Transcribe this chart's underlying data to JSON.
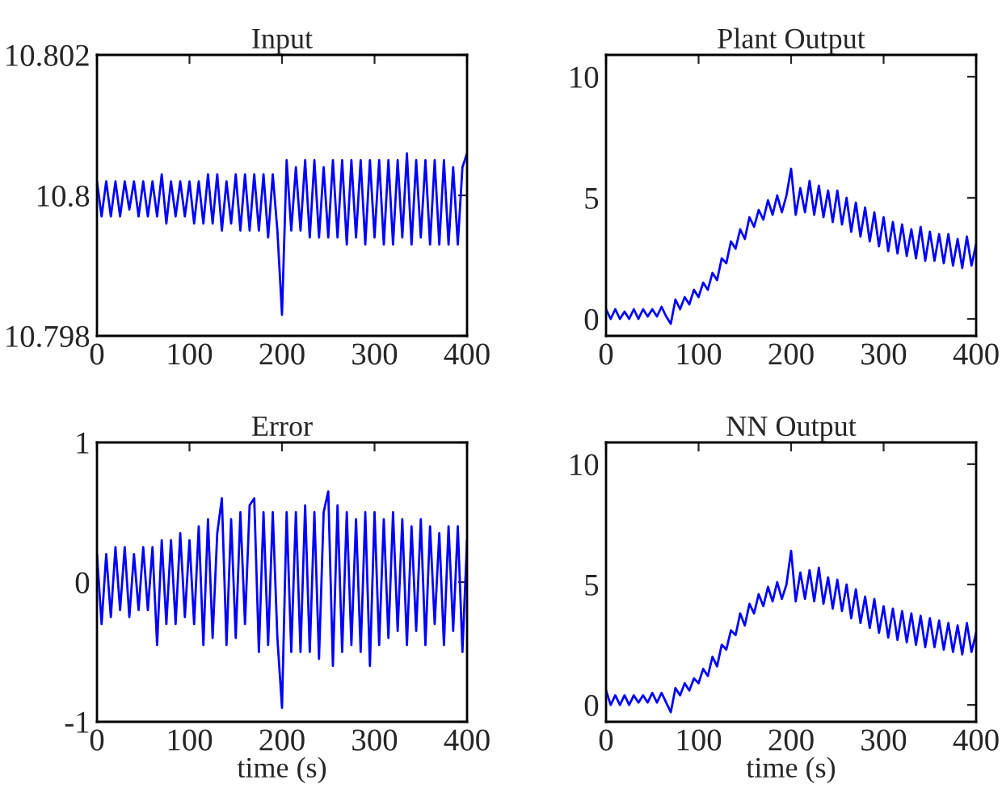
{
  "chart_data": [
    {
      "type": "line",
      "title": "Input",
      "xlim": [
        0,
        400
      ],
      "ylim": [
        10.798,
        10.802
      ],
      "xticks": [
        0,
        100,
        200,
        300,
        400
      ],
      "yticks": [
        10.798,
        10.8,
        10.802
      ],
      "x": [
        0,
        5,
        10,
        15,
        20,
        25,
        30,
        35,
        40,
        45,
        50,
        55,
        60,
        65,
        70,
        75,
        80,
        85,
        90,
        95,
        100,
        105,
        110,
        115,
        120,
        125,
        130,
        135,
        140,
        145,
        150,
        155,
        160,
        165,
        170,
        175,
        180,
        185,
        190,
        195,
        200,
        205,
        210,
        215,
        220,
        225,
        230,
        235,
        240,
        245,
        250,
        255,
        260,
        265,
        270,
        275,
        280,
        285,
        290,
        295,
        300,
        305,
        310,
        315,
        320,
        325,
        330,
        335,
        340,
        345,
        350,
        355,
        360,
        365,
        370,
        375,
        380,
        385,
        390,
        395,
        400
      ],
      "series": [
        {
          "color": "#0000ff",
          "values": [
            10.8002,
            10.7997,
            10.8002,
            10.7997,
            10.8002,
            10.7997,
            10.8002,
            10.7998,
            10.8002,
            10.7997,
            10.8002,
            10.7997,
            10.8002,
            10.7997,
            10.8003,
            10.7996,
            10.8002,
            10.7997,
            10.8002,
            10.7997,
            10.8002,
            10.7996,
            10.8002,
            10.7996,
            10.8003,
            10.7996,
            10.8003,
            10.7995,
            10.8002,
            10.7996,
            10.8003,
            10.7995,
            10.8003,
            10.7995,
            10.8003,
            10.7995,
            10.8003,
            10.7994,
            10.8003,
            10.7995,
            10.7983,
            10.8005,
            10.7995,
            10.8004,
            10.7995,
            10.8005,
            10.7994,
            10.8005,
            10.7994,
            10.8004,
            10.7994,
            10.8005,
            10.7994,
            10.8005,
            10.7993,
            10.8005,
            10.7994,
            10.8005,
            10.7993,
            10.8005,
            10.7994,
            10.8005,
            10.7993,
            10.8005,
            10.7993,
            10.8005,
            10.7994,
            10.8006,
            10.7993,
            10.8005,
            10.7994,
            10.8005,
            10.7993,
            10.8005,
            10.7993,
            10.8005,
            10.7993,
            10.8004,
            10.7993,
            10.8004,
            10.8006
          ]
        }
      ]
    },
    {
      "type": "line",
      "title": "Plant Output",
      "xlim": [
        0,
        400
      ],
      "ylim": [
        -0.7,
        10.9
      ],
      "xticks": [
        0,
        100,
        200,
        300,
        400
      ],
      "yticks": [
        0,
        5,
        10
      ],
      "x": [
        0,
        5,
        10,
        15,
        20,
        25,
        30,
        35,
        40,
        45,
        50,
        55,
        60,
        65,
        70,
        75,
        80,
        85,
        90,
        95,
        100,
        105,
        110,
        115,
        120,
        125,
        130,
        135,
        140,
        145,
        150,
        155,
        160,
        165,
        170,
        175,
        180,
        185,
        190,
        195,
        200,
        205,
        210,
        215,
        220,
        225,
        230,
        235,
        240,
        245,
        250,
        255,
        260,
        265,
        270,
        275,
        280,
        285,
        290,
        295,
        300,
        305,
        310,
        315,
        320,
        325,
        330,
        335,
        340,
        345,
        350,
        355,
        360,
        365,
        370,
        375,
        380,
        385,
        390,
        395,
        400
      ],
      "series": [
        {
          "color": "#0000ff",
          "values": [
            0.4,
            0.0,
            0.4,
            0.0,
            0.3,
            0.0,
            0.4,
            0.0,
            0.4,
            0.1,
            0.4,
            0.1,
            0.5,
            0.1,
            -0.2,
            0.8,
            0.4,
            0.9,
            0.6,
            1.2,
            0.9,
            1.5,
            1.2,
            1.9,
            1.6,
            2.5,
            2.3,
            3.2,
            2.9,
            3.7,
            3.3,
            4.2,
            3.8,
            4.5,
            4.1,
            4.9,
            4.3,
            5.1,
            4.4,
            5.1,
            6.2,
            4.3,
            5.4,
            4.4,
            5.7,
            4.3,
            5.5,
            4.2,
            5.3,
            4.0,
            5.3,
            3.9,
            5.0,
            3.6,
            4.8,
            3.4,
            4.6,
            3.2,
            4.4,
            3.0,
            4.2,
            2.8,
            4.0,
            2.7,
            3.9,
            2.6,
            3.7,
            2.5,
            3.8,
            2.4,
            3.6,
            2.4,
            3.5,
            2.3,
            3.5,
            2.2,
            3.3,
            2.1,
            3.4,
            2.2,
            3.1
          ]
        }
      ]
    },
    {
      "type": "line",
      "title": "Error",
      "xlabel": "time (s)",
      "xlim": [
        0,
        400
      ],
      "ylim": [
        -1,
        1
      ],
      "xticks": [
        0,
        100,
        200,
        300,
        400
      ],
      "yticks": [
        -1,
        0,
        1
      ],
      "x": [
        0,
        5,
        10,
        15,
        20,
        25,
        30,
        35,
        40,
        45,
        50,
        55,
        60,
        65,
        70,
        75,
        80,
        85,
        90,
        95,
        100,
        105,
        110,
        115,
        120,
        125,
        130,
        135,
        140,
        145,
        150,
        155,
        160,
        165,
        170,
        175,
        180,
        185,
        190,
        195,
        200,
        205,
        210,
        215,
        220,
        225,
        230,
        235,
        240,
        245,
        250,
        255,
        260,
        265,
        270,
        275,
        280,
        285,
        290,
        295,
        300,
        305,
        310,
        315,
        320,
        325,
        330,
        335,
        340,
        345,
        350,
        355,
        360,
        365,
        370,
        375,
        380,
        385,
        390,
        395,
        400
      ],
      "series": [
        {
          "color": "#0000ff",
          "values": [
            0.2,
            -0.3,
            0.2,
            -0.25,
            0.25,
            -0.2,
            0.25,
            -0.25,
            0.2,
            -0.2,
            0.25,
            -0.2,
            0.25,
            -0.45,
            0.3,
            -0.3,
            0.3,
            -0.3,
            0.35,
            -0.25,
            0.3,
            -0.3,
            0.4,
            -0.45,
            0.45,
            -0.4,
            0.35,
            0.6,
            -0.45,
            0.45,
            -0.4,
            0.5,
            -0.3,
            0.55,
            0.6,
            -0.5,
            0.5,
            -0.45,
            0.5,
            -0.4,
            -0.9,
            0.5,
            -0.5,
            0.5,
            -0.5,
            0.55,
            -0.5,
            0.5,
            -0.55,
            0.5,
            0.65,
            -0.6,
            0.55,
            -0.5,
            0.5,
            -0.45,
            0.45,
            -0.5,
            0.5,
            -0.6,
            0.5,
            -0.45,
            0.45,
            -0.4,
            0.5,
            -0.35,
            0.45,
            -0.45,
            0.4,
            -0.35,
            0.45,
            -0.45,
            0.4,
            -0.3,
            0.35,
            -0.45,
            0.4,
            -0.35,
            0.4,
            -0.5,
            0.3
          ]
        }
      ]
    },
    {
      "type": "line",
      "title": "NN Output",
      "xlabel": "time (s)",
      "xlim": [
        0,
        400
      ],
      "ylim": [
        -0.7,
        10.9
      ],
      "xticks": [
        0,
        100,
        200,
        300,
        400
      ],
      "yticks": [
        0,
        5,
        10
      ],
      "x": [
        0,
        5,
        10,
        15,
        20,
        25,
        30,
        35,
        40,
        45,
        50,
        55,
        60,
        65,
        70,
        75,
        80,
        85,
        90,
        95,
        100,
        105,
        110,
        115,
        120,
        125,
        130,
        135,
        140,
        145,
        150,
        155,
        160,
        165,
        170,
        175,
        180,
        185,
        190,
        195,
        200,
        205,
        210,
        215,
        220,
        225,
        230,
        235,
        240,
        245,
        250,
        255,
        260,
        265,
        270,
        275,
        280,
        285,
        290,
        295,
        300,
        305,
        310,
        315,
        320,
        325,
        330,
        335,
        340,
        345,
        350,
        355,
        360,
        365,
        370,
        375,
        380,
        385,
        390,
        395,
        400
      ],
      "series": [
        {
          "color": "#0000ff",
          "values": [
            0.6,
            0.0,
            0.4,
            0.0,
            0.4,
            0.0,
            0.4,
            0.1,
            0.4,
            0.1,
            0.5,
            0.1,
            0.5,
            0.1,
            -0.3,
            0.7,
            0.4,
            0.9,
            0.6,
            1.1,
            0.9,
            1.5,
            1.2,
            2.0,
            1.6,
            2.5,
            2.3,
            3.1,
            2.9,
            3.8,
            3.3,
            4.2,
            3.8,
            4.6,
            4.1,
            4.9,
            4.3,
            5.1,
            4.4,
            5.0,
            6.4,
            4.3,
            5.5,
            4.4,
            5.6,
            4.3,
            5.7,
            4.2,
            5.3,
            4.0,
            5.2,
            3.9,
            5.0,
            3.6,
            4.8,
            3.4,
            4.5,
            3.2,
            4.4,
            3.0,
            4.1,
            2.8,
            4.0,
            2.7,
            3.9,
            2.6,
            3.8,
            2.5,
            3.7,
            2.4,
            3.6,
            2.4,
            3.5,
            2.3,
            3.4,
            2.2,
            3.3,
            2.1,
            3.4,
            2.2,
            3.0
          ]
        }
      ]
    }
  ]
}
